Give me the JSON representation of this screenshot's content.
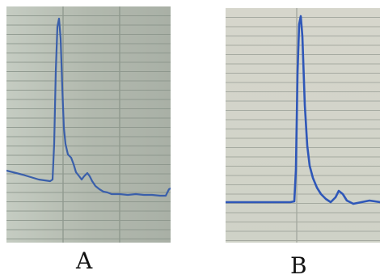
{
  "panels": [
    {
      "label": "A",
      "paper_color": "#b9c0b6",
      "grid_color": "#8a948a",
      "trace_color": "#3a5faa"
    },
    {
      "label": "B",
      "paper_color": "#d8d9cf",
      "grid_color": "#9ea39a",
      "trace_color": "#2f57b8"
    }
  ]
}
